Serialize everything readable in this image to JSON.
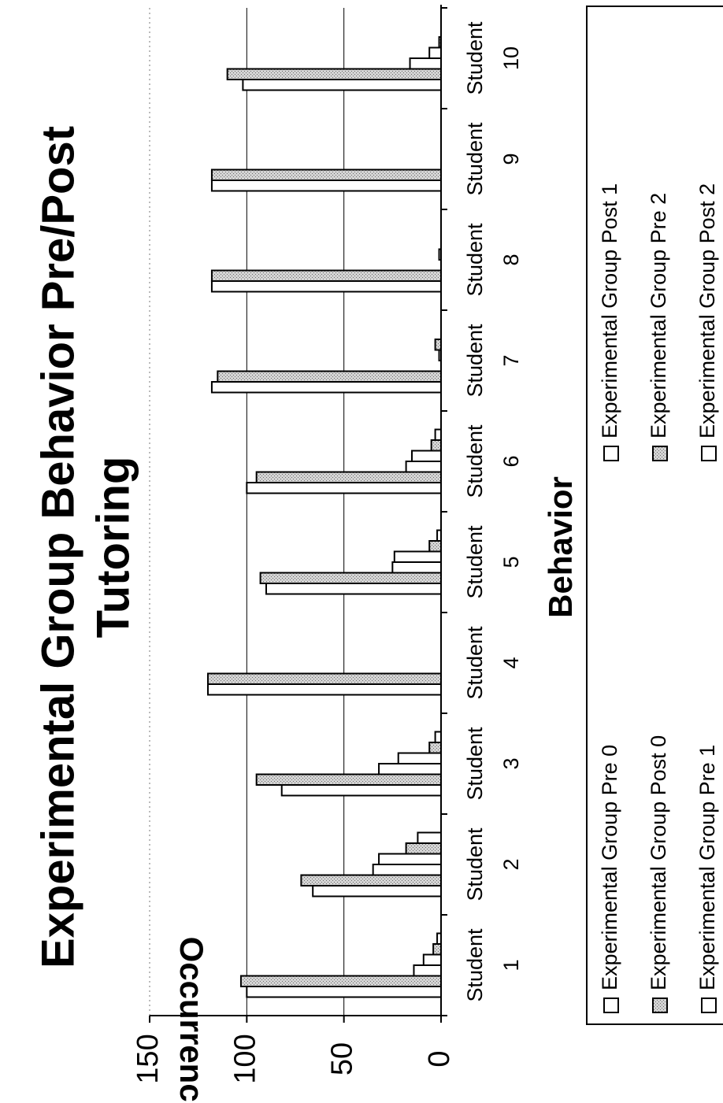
{
  "chart_data": {
    "type": "bar",
    "title": "Experimental Group Behavior Pre/Post Tutoring",
    "title_lines": [
      "Experimental Group Behavior Pre/Post",
      "Tutoring"
    ],
    "xlabel": "Behavior",
    "ylabel": "Occurrences",
    "orientation": "horizontal-rotated",
    "grid": true,
    "legend_position": "bottom",
    "ylim": [
      0,
      150
    ],
    "yticks": [
      "0",
      "50",
      "100",
      "150"
    ],
    "categories": [
      "Student 1",
      "Student 2",
      "Student 3",
      "Student 4",
      "Student 5",
      "Student 6",
      "Student 7",
      "Student 8",
      "Student 9",
      "Student 10"
    ],
    "category_words": [
      "Student",
      "Student",
      "Student",
      "Student",
      "Student",
      "Student",
      "Student",
      "Student",
      "Student",
      "Student"
    ],
    "category_numbers": [
      "1",
      "2",
      "3",
      "4",
      "5",
      "6",
      "7",
      "8",
      "9",
      "10"
    ],
    "series": [
      {
        "name": "Experimental Group Pre 0",
        "fill": "#ffffff",
        "values": [
          100,
          66,
          82,
          120,
          90,
          100,
          118,
          118,
          118,
          102
        ]
      },
      {
        "name": "Experimental Group Post 0",
        "fill": "#c8c8c8",
        "values": [
          103,
          72,
          95,
          120,
          93,
          95,
          115,
          118,
          118,
          110
        ]
      },
      {
        "name": "Experimental Group Pre 1",
        "fill": "#ffffff",
        "values": [
          14,
          35,
          32,
          0,
          25,
          18,
          0,
          0,
          0,
          16
        ]
      },
      {
        "name": "Experimental Group Post 1",
        "fill": "#ffffff",
        "values": [
          9,
          32,
          22,
          0,
          24,
          15,
          1,
          1,
          0,
          6
        ]
      },
      {
        "name": "Experimental Group Pre 2",
        "fill": "#c8c8c8",
        "values": [
          4,
          18,
          6,
          0,
          6,
          5,
          3,
          0,
          0,
          1
        ]
      },
      {
        "name": "Experimental Group Post 2",
        "fill": "#ffffff",
        "values": [
          2,
          12,
          3,
          0,
          2,
          3,
          0,
          0,
          0,
          0
        ]
      }
    ]
  }
}
